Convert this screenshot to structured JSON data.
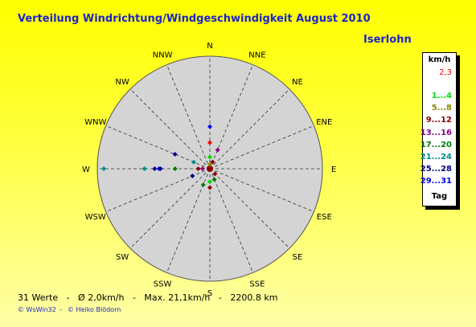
{
  "title": "Verteilung Windrichtung/Windgeschwindigkeit  August 2010",
  "location": "Iserlohn",
  "footer": "31 Werte   -   Ø 2,0km/h   -   Max. 21,1km/h   -   2200.8 km",
  "credit_left": "© WsWin32",
  "credit_sep": "-",
  "credit_right": "© Heiko Blödorn",
  "legend": {
    "unit": "km/h",
    "calm": {
      "label": "2,3",
      "color": "#ff0000"
    },
    "ranges": [
      {
        "label": "1...4",
        "color": "#00dd00"
      },
      {
        "label": "5...8",
        "color": "#8a8a00"
      },
      {
        "label": "9...12",
        "color": "#8b0000"
      },
      {
        "label": "13...16",
        "color": "#8b008b"
      },
      {
        "label": "17...20",
        "color": "#007a00"
      },
      {
        "label": "21...24",
        "color": "#008b8b"
      },
      {
        "label": "25...28",
        "color": "#00008b"
      },
      {
        "label": "29...31",
        "color": "#0000ff"
      }
    ],
    "footer": "Tag"
  },
  "chart_data": {
    "type": "scatter",
    "coordinate_system": "polar",
    "directions": [
      "N",
      "NNE",
      "NE",
      "ENE",
      "E",
      "ESE",
      "SE",
      "SSE",
      "S",
      "SSW",
      "SW",
      "WSW",
      "W",
      "WNW",
      "NW",
      "NNW"
    ],
    "radial_range_days": [
      0,
      31
    ],
    "points": [
      {
        "dir": "N",
        "days": 29,
        "color": "#0000ff"
      },
      {
        "dir": "N",
        "days": 18,
        "color": "#ff0000"
      },
      {
        "dir": "N",
        "days": 8,
        "color": "#00dd00"
      },
      {
        "dir": "N",
        "days": 3,
        "color": "#8a8a00"
      },
      {
        "dir": "NNE",
        "days": 14,
        "color": "#8b008b"
      },
      {
        "dir": "NNE",
        "days": 5,
        "color": "#8b0000"
      },
      {
        "dir": "WNW",
        "days": 26,
        "color": "#00008b"
      },
      {
        "dir": "WNW",
        "days": 12,
        "color": "#008b8b"
      },
      {
        "dir": "W",
        "days": 73,
        "color": "#008b8b"
      },
      {
        "dir": "W",
        "days": 45,
        "color": "#008b8b"
      },
      {
        "dir": "W",
        "days": 38,
        "color": "#00008b"
      },
      {
        "dir": "W",
        "days": 35,
        "color": "#0000ff"
      },
      {
        "dir": "W",
        "days": 34,
        "color": "#00008b"
      },
      {
        "dir": "W",
        "days": 24,
        "color": "#007a00"
      },
      {
        "dir": "W",
        "days": 8,
        "color": "#8b0000"
      },
      {
        "dir": "W",
        "days": 5,
        "color": "#8b008b"
      },
      {
        "dir": "WSW",
        "days": 13,
        "color": "#00008b"
      },
      {
        "dir": "SSW",
        "days": 12,
        "color": "#007a00"
      },
      {
        "dir": "S",
        "days": 13,
        "color": "#8b0000"
      },
      {
        "dir": "S",
        "days": 9,
        "color": "#00dd00"
      },
      {
        "dir": "SSE",
        "days": 8,
        "color": "#007a00"
      },
      {
        "dir": "SE",
        "days": 5,
        "color": "#8b0000"
      }
    ]
  }
}
